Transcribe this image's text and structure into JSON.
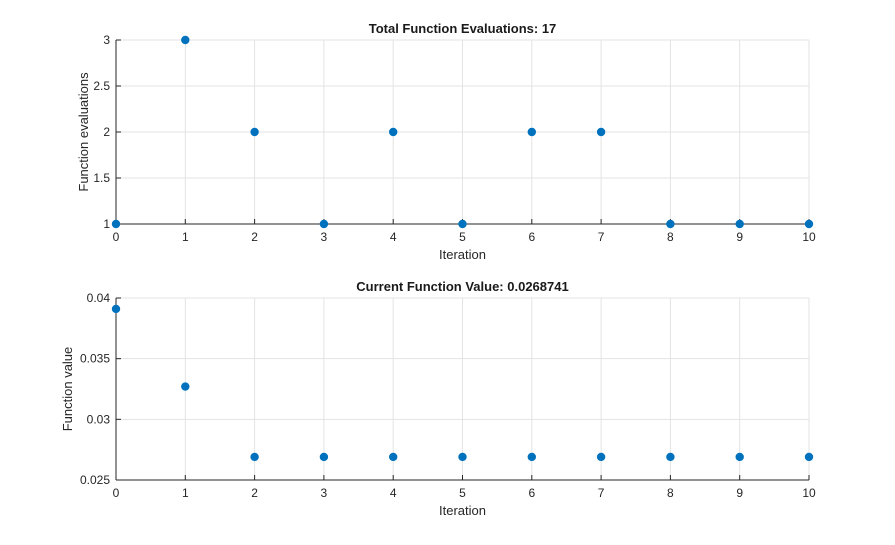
{
  "chart_data": [
    {
      "type": "scatter",
      "title": "Total Function Evaluations: 17",
      "xlabel": "Iteration",
      "ylabel": "Function evaluations",
      "xlim": [
        0,
        10
      ],
      "ylim": [
        1,
        3
      ],
      "xticks": [
        0,
        1,
        2,
        3,
        4,
        5,
        6,
        7,
        8,
        9,
        10
      ],
      "yticks": [
        1,
        1.5,
        2,
        2.5,
        3
      ],
      "xtick_labels": [
        "0",
        "1",
        "2",
        "3",
        "4",
        "5",
        "6",
        "7",
        "8",
        "9",
        "10"
      ],
      "ytick_labels": [
        "1",
        "1.5",
        "2",
        "2.5",
        "3"
      ],
      "grid": true,
      "marker_color": "#0072BD",
      "x": [
        0,
        1,
        2,
        3,
        4,
        5,
        6,
        7,
        8,
        9,
        10
      ],
      "y": [
        1,
        3,
        2,
        1,
        2,
        1,
        2,
        2,
        1,
        1,
        1
      ]
    },
    {
      "type": "scatter",
      "title": "Current Function Value: 0.0268741",
      "xlabel": "Iteration",
      "ylabel": "Function value",
      "xlim": [
        0,
        10
      ],
      "ylim": [
        0.025,
        0.04
      ],
      "xticks": [
        0,
        1,
        2,
        3,
        4,
        5,
        6,
        7,
        8,
        9,
        10
      ],
      "yticks": [
        0.025,
        0.03,
        0.035,
        0.04
      ],
      "xtick_labels": [
        "0",
        "1",
        "2",
        "3",
        "4",
        "5",
        "6",
        "7",
        "8",
        "9",
        "10"
      ],
      "ytick_labels": [
        "0.025",
        "0.03",
        "0.035",
        "0.04"
      ],
      "grid": true,
      "marker_color": "#0072BD",
      "x": [
        0,
        1,
        2,
        3,
        4,
        5,
        6,
        7,
        8,
        9,
        10
      ],
      "y": [
        0.0391,
        0.0327,
        0.0269,
        0.0269,
        0.0269,
        0.0269,
        0.0269,
        0.0269,
        0.0269,
        0.0269,
        0.0269
      ]
    }
  ]
}
